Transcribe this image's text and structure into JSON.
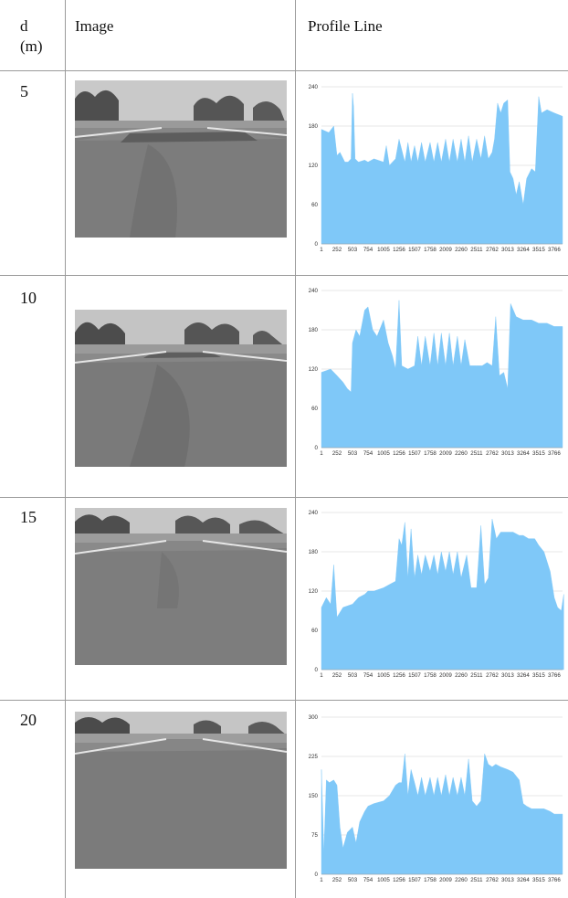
{
  "header": {
    "d_line1": "d",
    "d_line2": "(m)",
    "image": "Image",
    "profile": "Profile Line"
  },
  "rows": [
    {
      "d": "5"
    },
    {
      "d": "10"
    },
    {
      "d": "15"
    },
    {
      "d": "20"
    }
  ],
  "colors": {
    "fill": "#7fc8f8",
    "grid": "#d0d0d0"
  },
  "chart_data": [
    {
      "type": "area",
      "x_ticks": [
        "1",
        "252",
        "503",
        "754",
        "1005",
        "1256",
        "1507",
        "1758",
        "2009",
        "2260",
        "2511",
        "2762",
        "3013",
        "3264",
        "3515",
        "3766"
      ],
      "ylim": [
        0,
        240
      ],
      "y_ticks": [
        "0",
        "60",
        "120",
        "180",
        "240"
      ],
      "x": [
        1,
        120,
        200,
        252,
        300,
        380,
        430,
        480,
        503,
        520,
        545,
        600,
        700,
        754,
        850,
        1005,
        1050,
        1100,
        1200,
        1256,
        1350,
        1400,
        1450,
        1507,
        1560,
        1620,
        1680,
        1758,
        1820,
        1880,
        1940,
        2009,
        2070,
        2130,
        2200,
        2260,
        2320,
        2380,
        2440,
        2511,
        2580,
        2640,
        2700,
        2762,
        2800,
        2850,
        2900,
        2950,
        3013,
        3050,
        3100,
        3150,
        3200,
        3264,
        3320,
        3400,
        3460,
        3515,
        3560,
        3650,
        3766,
        3900
      ],
      "y": [
        175,
        170,
        180,
        135,
        140,
        125,
        125,
        130,
        230,
        210,
        130,
        125,
        128,
        125,
        130,
        125,
        150,
        120,
        130,
        160,
        125,
        155,
        125,
        150,
        125,
        155,
        125,
        155,
        125,
        155,
        125,
        160,
        125,
        160,
        125,
        160,
        125,
        165,
        125,
        160,
        130,
        165,
        130,
        140,
        160,
        215,
        200,
        215,
        220,
        110,
        100,
        75,
        95,
        60,
        100,
        115,
        110,
        225,
        200,
        205,
        200,
        195
      ]
    },
    {
      "type": "area",
      "x_ticks": [
        "1",
        "252",
        "503",
        "754",
        "1005",
        "1256",
        "1507",
        "1758",
        "2009",
        "2260",
        "2511",
        "2762",
        "3013",
        "3264",
        "3515",
        "3766"
      ],
      "ylim": [
        0,
        240
      ],
      "y_ticks": [
        "0",
        "60",
        "120",
        "180",
        "240"
      ],
      "x": [
        1,
        150,
        252,
        350,
        420,
        480,
        503,
        560,
        620,
        700,
        754,
        830,
        900,
        1005,
        1080,
        1150,
        1200,
        1256,
        1300,
        1400,
        1507,
        1560,
        1620,
        1680,
        1758,
        1820,
        1880,
        1940,
        2009,
        2070,
        2130,
        2200,
        2260,
        2320,
        2400,
        2511,
        2600,
        2680,
        2762,
        2820,
        2880,
        2950,
        3013,
        3060,
        3150,
        3264,
        3400,
        3515,
        3650,
        3766,
        3900
      ],
      "y": [
        115,
        120,
        110,
        100,
        90,
        85,
        160,
        180,
        170,
        210,
        215,
        180,
        170,
        195,
        160,
        140,
        120,
        225,
        125,
        120,
        125,
        170,
        125,
        170,
        125,
        175,
        125,
        175,
        125,
        175,
        125,
        170,
        125,
        165,
        125,
        125,
        125,
        130,
        125,
        200,
        110,
        115,
        90,
        220,
        200,
        195,
        195,
        190,
        190,
        185,
        185
      ]
    },
    {
      "type": "area",
      "x_ticks": [
        "1",
        "252",
        "503",
        "754",
        "1005",
        "1256",
        "1507",
        "1758",
        "2009",
        "2260",
        "2511",
        "2762",
        "3013",
        "3264",
        "3515",
        "3766"
      ],
      "ylim": [
        0,
        240
      ],
      "y_ticks": [
        "0",
        "60",
        "120",
        "180",
        "240"
      ],
      "x": [
        1,
        80,
        150,
        200,
        252,
        350,
        503,
        600,
        700,
        754,
        850,
        1005,
        1100,
        1200,
        1256,
        1300,
        1350,
        1400,
        1450,
        1507,
        1560,
        1620,
        1680,
        1758,
        1820,
        1880,
        1940,
        2009,
        2070,
        2130,
        2200,
        2260,
        2350,
        2420,
        2480,
        2511,
        2580,
        2640,
        2700,
        2762,
        2830,
        2900,
        3013,
        3100,
        3200,
        3264,
        3350,
        3450,
        3515,
        3600,
        3700,
        3766,
        3820,
        3880,
        3920
      ],
      "y": [
        95,
        110,
        100,
        160,
        80,
        95,
        100,
        110,
        115,
        120,
        120,
        125,
        130,
        135,
        200,
        190,
        225,
        140,
        215,
        140,
        175,
        145,
        175,
        150,
        175,
        145,
        180,
        150,
        180,
        145,
        180,
        140,
        175,
        125,
        125,
        125,
        220,
        130,
        140,
        230,
        200,
        210,
        210,
        210,
        205,
        205,
        200,
        200,
        190,
        180,
        150,
        110,
        95,
        90,
        115
      ]
    },
    {
      "type": "area",
      "x_ticks": [
        "1",
        "252",
        "503",
        "754",
        "1005",
        "1256",
        "1507",
        "1758",
        "2009",
        "2260",
        "2511",
        "2762",
        "3013",
        "3264",
        "3515",
        "3766"
      ],
      "ylim": [
        0,
        300
      ],
      "y_ticks": [
        "0",
        "75",
        "150",
        "225",
        "300"
      ],
      "x": [
        1,
        40,
        80,
        130,
        200,
        252,
        300,
        350,
        420,
        503,
        560,
        620,
        700,
        754,
        850,
        1005,
        1100,
        1200,
        1256,
        1300,
        1350,
        1400,
        1450,
        1507,
        1560,
        1620,
        1680,
        1758,
        1820,
        1880,
        1940,
        2009,
        2070,
        2130,
        2200,
        2260,
        2320,
        2380,
        2440,
        2511,
        2580,
        2640,
        2700,
        2762,
        2820,
        2900,
        3013,
        3100,
        3200,
        3264,
        3320,
        3400,
        3460,
        3515,
        3600,
        3700,
        3766,
        3820,
        3900
      ],
      "y": [
        200,
        40,
        180,
        175,
        180,
        170,
        90,
        50,
        80,
        90,
        60,
        100,
        120,
        130,
        135,
        140,
        150,
        170,
        175,
        175,
        230,
        150,
        200,
        175,
        150,
        185,
        150,
        185,
        150,
        185,
        150,
        190,
        150,
        185,
        150,
        185,
        150,
        220,
        140,
        130,
        140,
        230,
        210,
        205,
        210,
        205,
        200,
        195,
        180,
        135,
        130,
        125,
        125,
        125,
        125,
        120,
        115,
        115,
        115
      ]
    }
  ]
}
